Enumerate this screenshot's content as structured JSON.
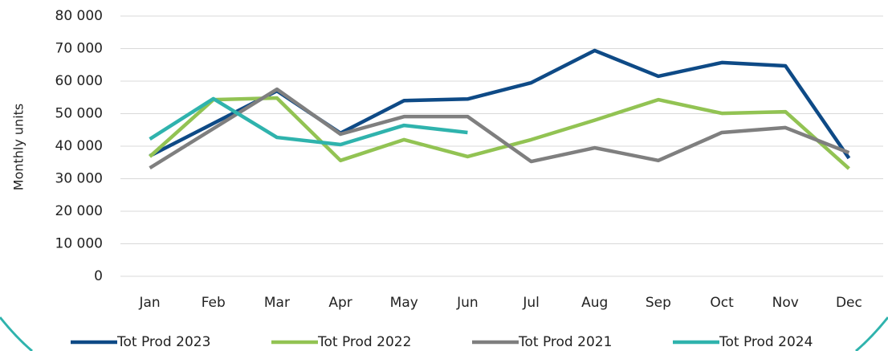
{
  "chart_data": {
    "type": "line",
    "y_label": "Monthly units",
    "categories": [
      "Jan",
      "Feb",
      "Mar",
      "Apr",
      "May",
      "Jun",
      "Jul",
      "Aug",
      "Sep",
      "Oct",
      "Nov",
      "Dec"
    ],
    "series": [
      {
        "name": "Tot Prod 2023",
        "color": "#0e4a86",
        "values": [
          37000,
          47000,
          57000,
          44000,
          54000,
          54500,
          59500,
          69400,
          61500,
          65700,
          64700,
          36300
        ]
      },
      {
        "name": "Tot Prod 2022",
        "color": "#92c353",
        "values": [
          36800,
          54300,
          54800,
          35600,
          42000,
          36800,
          42000,
          48000,
          54300,
          50100,
          50600,
          33100
        ]
      },
      {
        "name": "Tot Prod 2021",
        "color": "#7f7f7f",
        "values": [
          33300,
          45400,
          57500,
          43700,
          49100,
          49100,
          35300,
          39500,
          35600,
          44200,
          45700,
          38000
        ]
      },
      {
        "name": "Tot Prod 2024",
        "color": "#2fb3ad",
        "values": [
          42200,
          54600,
          42700,
          40500,
          46400,
          44200,
          null,
          null,
          null,
          null,
          null,
          null
        ]
      }
    ],
    "ylim": [
      0,
      80000
    ],
    "yticks": [
      0,
      {
        "value": 10000,
        "label": "10 000"
      },
      {
        "value": 20000,
        "label": "20 000"
      },
      {
        "value": 30000,
        "label": "30 000"
      },
      {
        "value": 40000,
        "label": "40 000"
      },
      {
        "value": 50000,
        "label": "50 000"
      },
      {
        "value": 60000,
        "label": "60 000"
      },
      {
        "value": 70000,
        "label": "70 000"
      },
      {
        "value": 80000,
        "label": "80 000"
      }
    ],
    "grid": true,
    "legend": "bottom"
  }
}
